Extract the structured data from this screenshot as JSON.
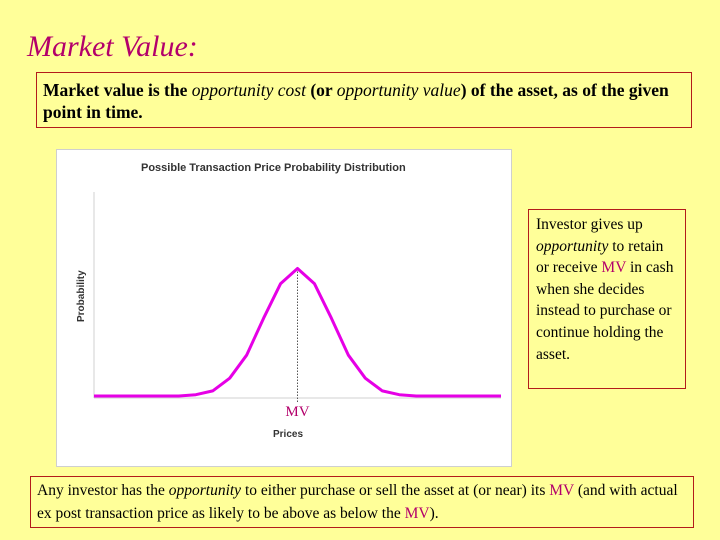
{
  "slide": {
    "title": "Market Value:"
  },
  "definition": {
    "part1": "Market value is the ",
    "term1": "opportunity cost",
    "part2": " (or ",
    "term2": "opportunity value",
    "part3": ") of the asset, as of the given point in time."
  },
  "investor_note": {
    "part1": "Investor gives up ",
    "term": "opportunity",
    "part2": " to retain or receive ",
    "mv": "MV",
    "part3": " in cash when she decides instead to purchase or continue holding the asset."
  },
  "bottom_note": {
    "part1": "Any investor has the ",
    "term": "opportunity",
    "part2": " to either purchase or sell the asset at (or near) its ",
    "mv1": "MV",
    "part3": " (and with actual ex post transaction price as likely to be above as below the ",
    "mv2": "MV",
    "part4": ")."
  },
  "chart_data": {
    "type": "line",
    "title": "Possible Transaction Price Probability Distribution",
    "xlabel": "Prices",
    "ylabel": "Probability",
    "marker_label": "MV",
    "distribution": "normal",
    "series": [
      {
        "color": "#e600e6",
        "x": [
          -6,
          -5,
          -4,
          -3.5,
          -3,
          -2.5,
          -2,
          -1.5,
          -1,
          -0.5,
          0,
          0.5,
          1,
          1.5,
          2,
          2.5,
          3,
          3.5,
          4,
          5,
          6
        ],
        "values": [
          0,
          0,
          0,
          0,
          0.01,
          0.04,
          0.14,
          0.32,
          0.61,
          0.88,
          1.0,
          0.88,
          0.61,
          0.32,
          0.14,
          0.04,
          0.01,
          0,
          0,
          0,
          0
        ]
      }
    ],
    "xlim": [
      -6,
      6
    ],
    "ylim": [
      0,
      1.6
    ],
    "ticks_shown": false,
    "grid": false,
    "legend": "none",
    "colors": {
      "curve": "#e600e6",
      "mv_line": "#555555",
      "mv_label": "#b3006b"
    }
  }
}
